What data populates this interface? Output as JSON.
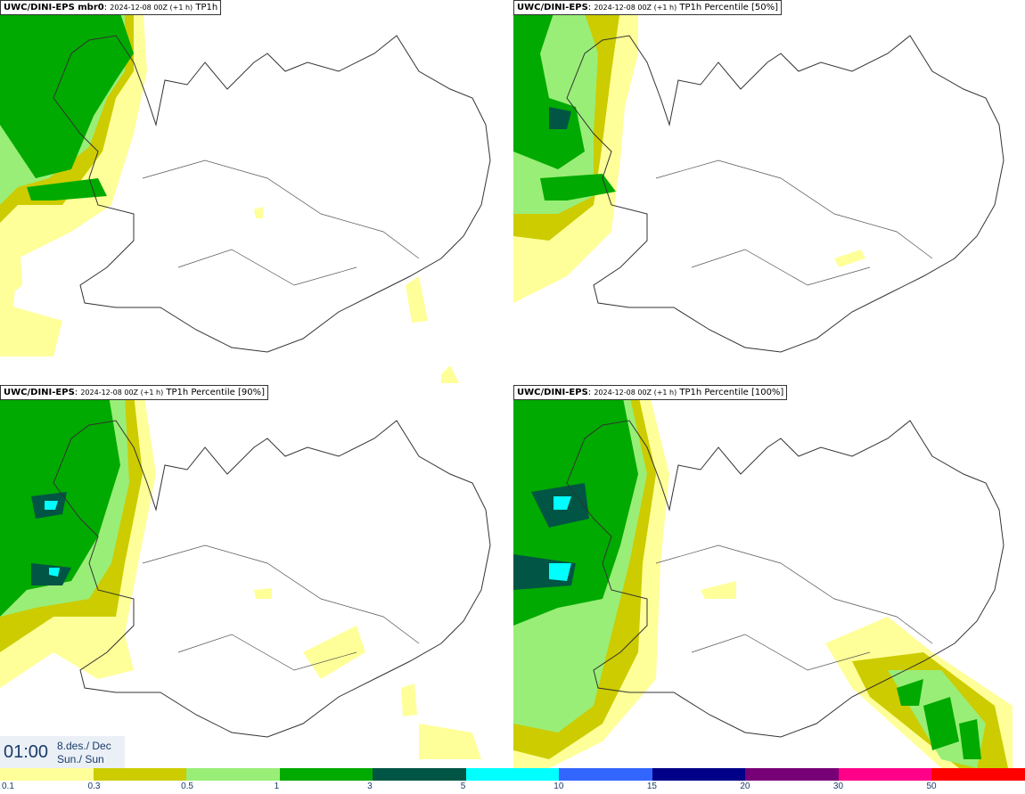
{
  "panels": [
    {
      "model": "UWC/DINI-EPS mbr0",
      "suffix": ": ",
      "run": "2024-12-08 00Z (+1 h)",
      "field": "TP1h"
    },
    {
      "model": "UWC/DINI-EPS",
      "suffix": ": ",
      "run": "2024-12-08 00Z (+1 h)",
      "field": "TP1h Percentile [50%]"
    },
    {
      "model": "UWC/DINI-EPS",
      "suffix": ": ",
      "run": "2024-12-08 00Z (+1 h)",
      "field": "TP1h Percentile [90%]"
    },
    {
      "model": "UWC/DINI-EPS",
      "suffix": ": ",
      "run": "2024-12-08 00Z (+1 h)",
      "field": "TP1h Percentile [100%]"
    }
  ],
  "time": {
    "label": "01:00",
    "date_line1": "8.des./ Dec",
    "date_line2": "Sun./ Sun"
  },
  "legend": {
    "ticks": [
      "0.1",
      "0.3",
      "0.5",
      "1",
      "3",
      "5",
      "10",
      "15",
      "20",
      "30",
      "50"
    ],
    "colors": [
      "#ffff99",
      "#cccc00",
      "#99ee77",
      "#00aa00",
      "#005544",
      "#00ffff",
      "#3366ff",
      "#000088",
      "#770077",
      "#ff0088",
      "#ff0000"
    ]
  },
  "colors": {
    "light_yellow": "#ffff99",
    "olive": "#cccc00",
    "light_green": "#99ee77",
    "green": "#00aa00",
    "dark_teal": "#005544",
    "cyan": "#00ffff",
    "coast": "#333333"
  }
}
